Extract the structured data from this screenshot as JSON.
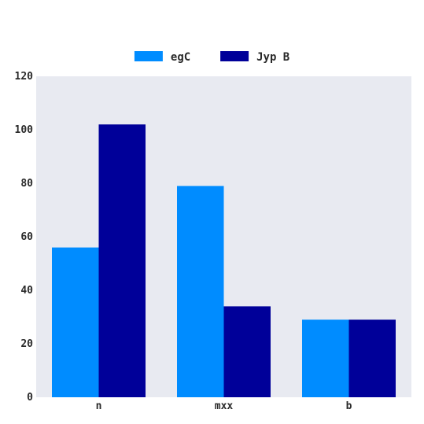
{
  "chart_data": {
    "type": "bar",
    "categories": [
      "n",
      "mxx",
      "b"
    ],
    "series": [
      {
        "name": "egC",
        "values": [
          56,
          79,
          29
        ],
        "color": "#008cff"
      },
      {
        "name": "Jyp B",
        "values": [
          102,
          34,
          29
        ],
        "color": "#000099"
      }
    ],
    "ylim": [
      0,
      120
    ],
    "yticks": [
      0,
      20,
      40,
      60,
      80,
      100,
      120
    ],
    "grid": false,
    "legend_position": "top-center",
    "plot_background": "#e8eaf1"
  }
}
